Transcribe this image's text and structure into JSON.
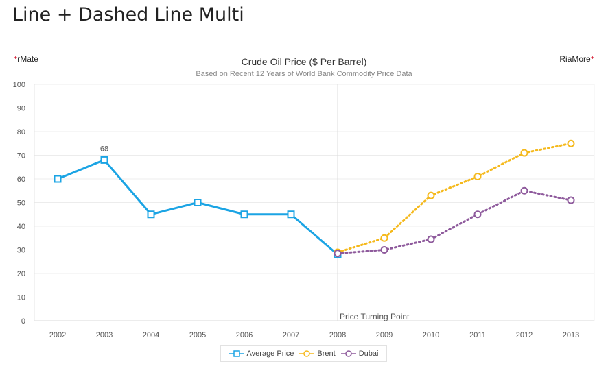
{
  "page": {
    "title": "Line + Dashed Line Multi"
  },
  "brand": {
    "left_label": "rMate",
    "right_label": "RiaMore",
    "plus_glyph": "+"
  },
  "chart_data": {
    "type": "line",
    "title": "Crude Oil Price ($ Per Barrel)",
    "subtitle": "Based on Recent 12 Years of World Bank Commodity Price Data",
    "categories": [
      "2002",
      "2003",
      "2004",
      "2005",
      "2006",
      "2007",
      "2008",
      "2009",
      "2010",
      "2011",
      "2012",
      "2013"
    ],
    "ylim": [
      0,
      100
    ],
    "yticks": [
      0,
      10,
      20,
      30,
      40,
      50,
      60,
      70,
      80,
      90,
      100
    ],
    "grid": true,
    "series": [
      {
        "name": "Average Price",
        "color": "#1ba4e4",
        "style": "solid",
        "marker": "square",
        "values": [
          60,
          68,
          45,
          50,
          45,
          45,
          28,
          null,
          null,
          null,
          null,
          null
        ]
      },
      {
        "name": "Brent",
        "color": "#f5b91c",
        "style": "dotted",
        "marker": "circle",
        "values": [
          null,
          null,
          null,
          null,
          null,
          null,
          29,
          35,
          53,
          61,
          71,
          75
        ]
      },
      {
        "name": "Dubai",
        "color": "#8e5a9c",
        "style": "dotted",
        "marker": "circle",
        "values": [
          null,
          null,
          null,
          null,
          null,
          null,
          28.5,
          30,
          34.5,
          45,
          55,
          51
        ]
      }
    ],
    "annotations": [
      {
        "category": "2003",
        "text": "68",
        "series": "Average Price"
      },
      {
        "category": "2008",
        "text": "Price Turning Point",
        "kind": "vertical-line"
      }
    ],
    "legend_position": "bottom-center"
  }
}
